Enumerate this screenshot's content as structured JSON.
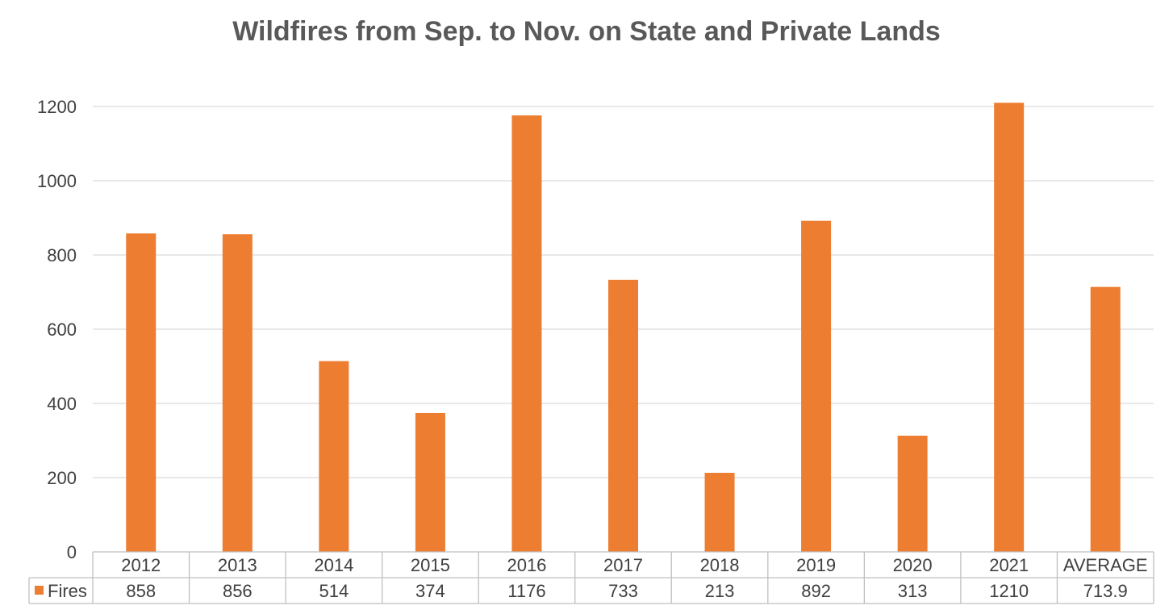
{
  "chart_data": {
    "type": "bar",
    "title": "Wildfires from Sep. to Nov. on State and Private Lands",
    "categories": [
      "2012",
      "2013",
      "2014",
      "2015",
      "2016",
      "2017",
      "2018",
      "2019",
      "2020",
      "2021",
      "AVERAGE"
    ],
    "series": [
      {
        "name": "Fires",
        "values": [
          858,
          856,
          514,
          374,
          1176,
          733,
          213,
          892,
          313,
          1210,
          713.9
        ],
        "labels": [
          "858",
          "856",
          "514",
          "374",
          "1176",
          "733",
          "213",
          "892",
          "313",
          "1210",
          "713.9"
        ],
        "color": "#ED7D31"
      }
    ],
    "yticks": [
      "0",
      "200",
      "400",
      "600",
      "800",
      "1000",
      "1200"
    ],
    "ylim": [
      0,
      1200
    ],
    "grid": true,
    "legend": "data-table",
    "xlabel": "",
    "ylabel": ""
  }
}
